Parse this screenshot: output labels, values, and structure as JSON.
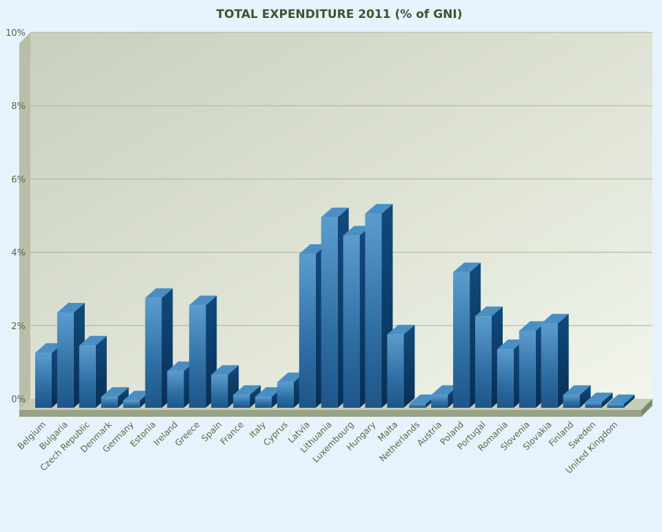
{
  "chart_data": {
    "type": "bar",
    "title": "TOTAL EXPENDITURE 2011 (% of GNI)",
    "xlabel": "",
    "ylabel": "",
    "ylim": [
      0,
      10
    ],
    "yticks": [
      0,
      2,
      4,
      6,
      8,
      10
    ],
    "ytick_labels": [
      "0%",
      "2%",
      "4%",
      "6%",
      "8%",
      "10%"
    ],
    "grid": true,
    "legend": "none",
    "style": "3d",
    "colors": {
      "bar": "#2c6ea3",
      "bar_top": "#4a8fc4",
      "bar_side": "#0d3f6c",
      "plot_bg": "#d3d9c9",
      "floor": "#9ca88c",
      "title": "#3a5530",
      "tick_text": "#546a44"
    },
    "categories": [
      "Belgium",
      "Bulgaria",
      "Czech Republic",
      "Denmark",
      "Germany",
      "Estonia",
      "Ireland",
      "Greece",
      "Spain",
      "France",
      "Italy",
      "Cyprus",
      "Latvia",
      "Lithuania",
      "Luxembourg",
      "Hungary",
      "Malta",
      "Netherlands",
      "Austria",
      "Poland",
      "Portugal",
      "Romania",
      "Slovenia",
      "Slovakia",
      "Finland",
      "Sweden",
      "United Kingdom"
    ],
    "values": [
      1.5,
      2.6,
      1.7,
      0.3,
      0.2,
      3.0,
      1.0,
      2.8,
      0.9,
      0.35,
      0.3,
      0.7,
      4.2,
      5.2,
      4.7,
      5.3,
      2.0,
      0.1,
      0.35,
      3.7,
      2.5,
      1.6,
      2.1,
      2.3,
      0.35,
      0.15,
      0.1
    ]
  }
}
